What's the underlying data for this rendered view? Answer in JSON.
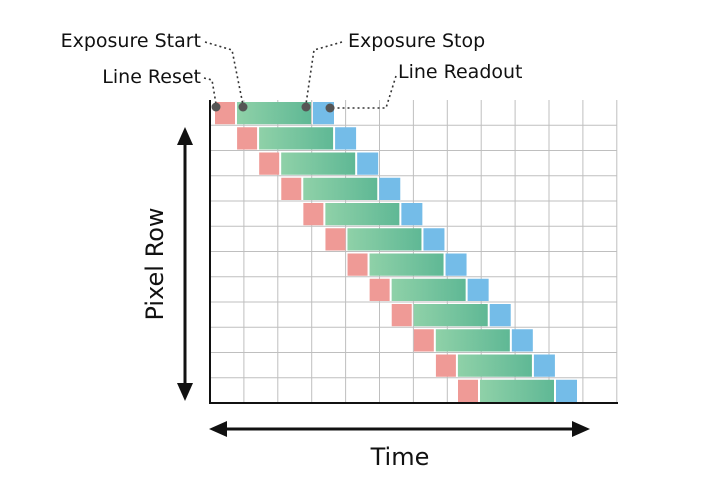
{
  "labels": {
    "exposure_start": "Exposure Start",
    "exposure_stop": "Exposure Stop",
    "line_reset": "Line Reset",
    "line_readout": "Line Readout",
    "y_axis": "Pixel Row",
    "x_axis": "Time"
  },
  "rows": 12,
  "colors": {
    "reset": "#ef9a96",
    "exposure_start": "#8fd1a8",
    "exposure_end": "#5fb895",
    "readout": "#74bce8",
    "grid": "#bfbfbf",
    "axis": "#111111",
    "marker": "#555555"
  }
}
